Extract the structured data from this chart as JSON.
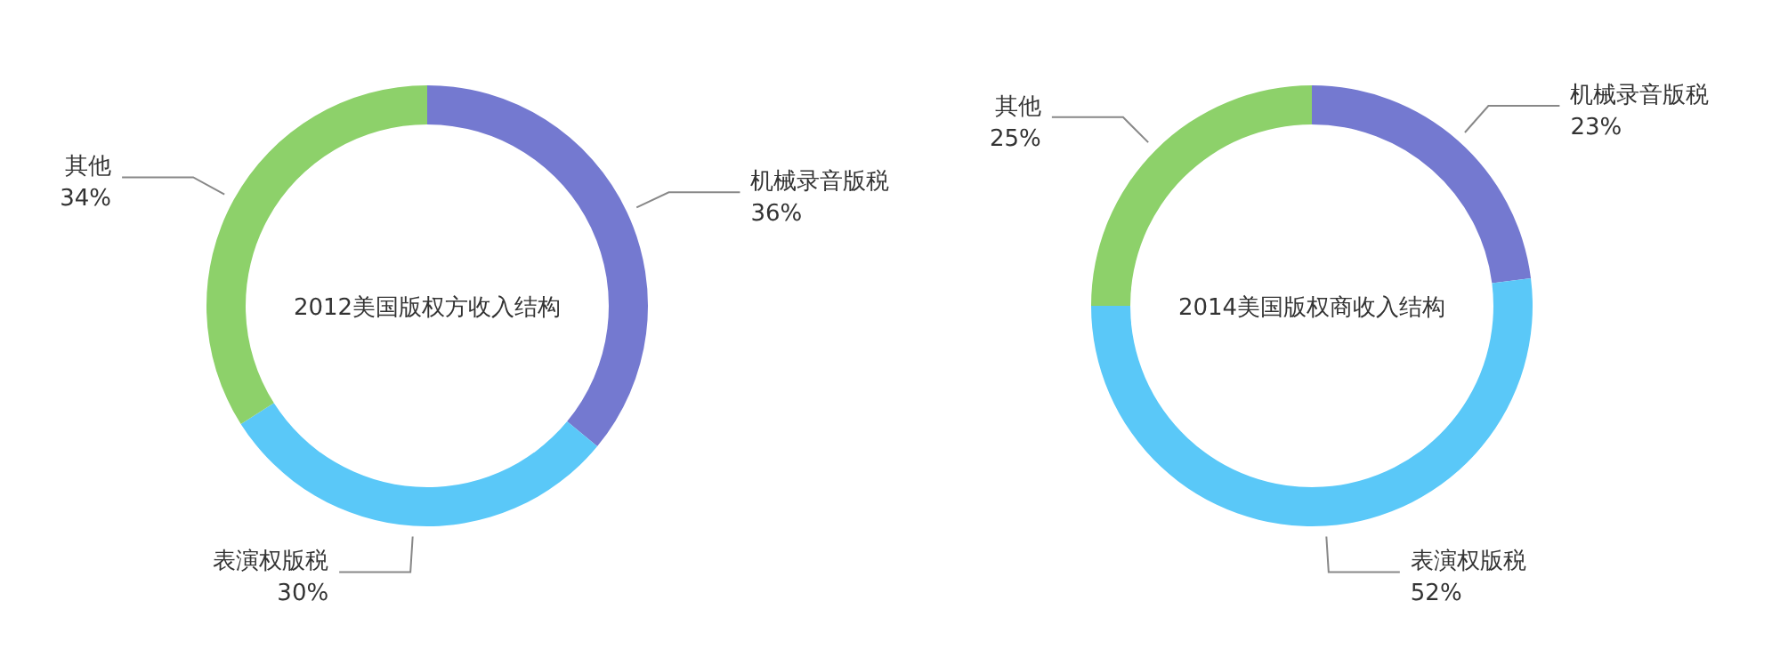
{
  "chart_data": [
    {
      "type": "donut",
      "title": "2012美国版权方收入结构",
      "categories": [
        "机械录音版税",
        "表演权版税",
        "其他"
      ],
      "values": [
        36,
        30,
        34
      ],
      "value_labels": [
        "36%",
        "30%",
        "34%"
      ],
      "colors": [
        "#7479d0",
        "#5ac8f8",
        "#8dd16a"
      ]
    },
    {
      "type": "donut",
      "title": "2014美国版权商收入结构",
      "categories": [
        "机械录音版税",
        "表演权版税",
        "其他"
      ],
      "values": [
        23,
        52,
        25
      ],
      "value_labels": [
        "23%",
        "52%",
        "25%"
      ],
      "colors": [
        "#7479d0",
        "#5ac8f8",
        "#8dd16a"
      ]
    }
  ]
}
